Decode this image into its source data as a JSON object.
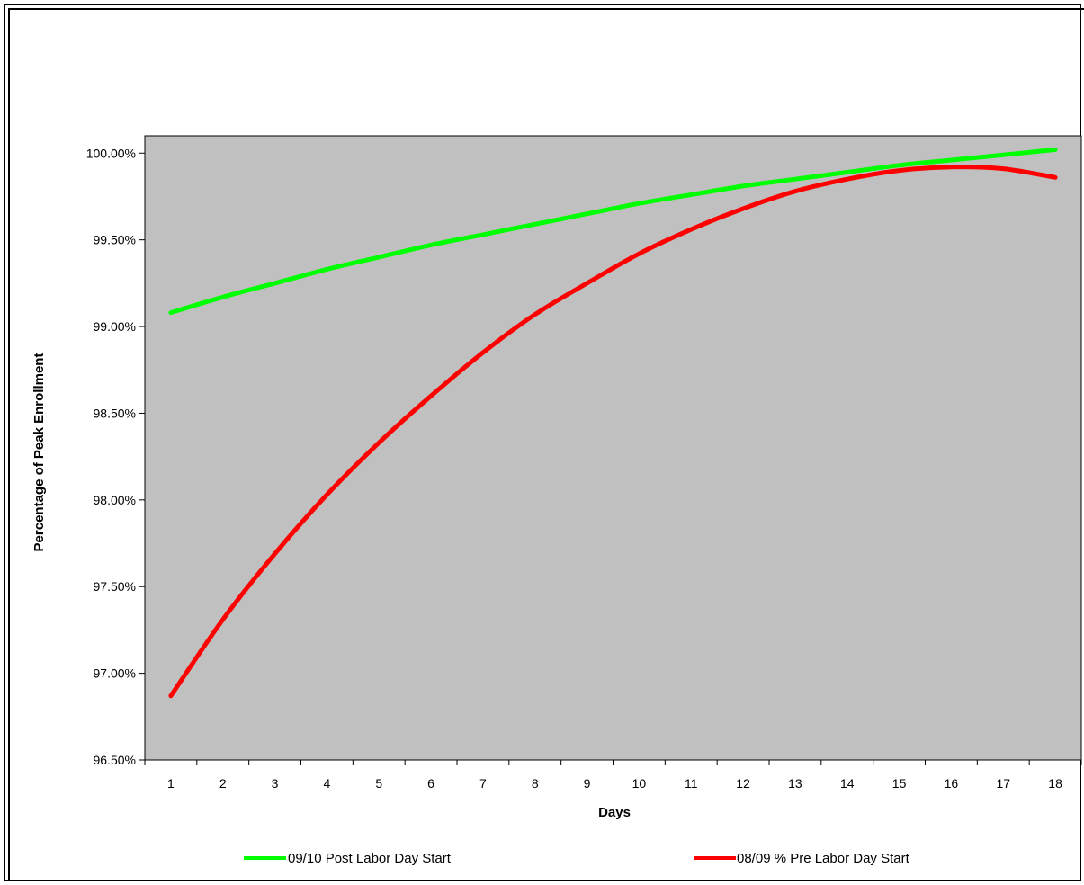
{
  "chart_data": {
    "type": "line",
    "title": "",
    "xlabel": "Days",
    "ylabel": "Percentage of Peak Enrollment",
    "x": [
      1,
      2,
      3,
      4,
      5,
      6,
      7,
      8,
      9,
      10,
      11,
      12,
      13,
      14,
      15,
      16,
      17,
      18
    ],
    "xlim": [
      0.5,
      18.5
    ],
    "ylim": [
      96.5,
      100.1
    ],
    "yticks": [
      96.5,
      97.0,
      97.5,
      98.0,
      98.5,
      99.0,
      99.5,
      100.0
    ],
    "ytick_labels": [
      "96.50%",
      "97.00%",
      "97.50%",
      "98.00%",
      "98.50%",
      "99.00%",
      "99.50%",
      "100.00%"
    ],
    "xtick_labels": [
      "1",
      "2",
      "3",
      "4",
      "5",
      "6",
      "7",
      "8",
      "9",
      "10",
      "11",
      "12",
      "13",
      "14",
      "15",
      "16",
      "17",
      "18"
    ],
    "plot_background": "#c0c0c0",
    "grid": false,
    "legend_position": "bottom",
    "series": [
      {
        "name": "09/10 Post Labor Day Start",
        "color": "#00ff00",
        "values": [
          99.08,
          99.17,
          99.25,
          99.33,
          99.4,
          99.47,
          99.53,
          99.59,
          99.65,
          99.71,
          99.76,
          99.81,
          99.85,
          99.89,
          99.93,
          99.96,
          99.99,
          100.02
        ]
      },
      {
        "name": "08/09 % Pre Labor Day Start",
        "color": "#ff0000",
        "values": [
          96.87,
          97.31,
          97.69,
          98.03,
          98.33,
          98.6,
          98.85,
          99.07,
          99.25,
          99.42,
          99.56,
          99.68,
          99.78,
          99.85,
          99.9,
          99.92,
          99.91,
          99.86
        ]
      }
    ]
  }
}
